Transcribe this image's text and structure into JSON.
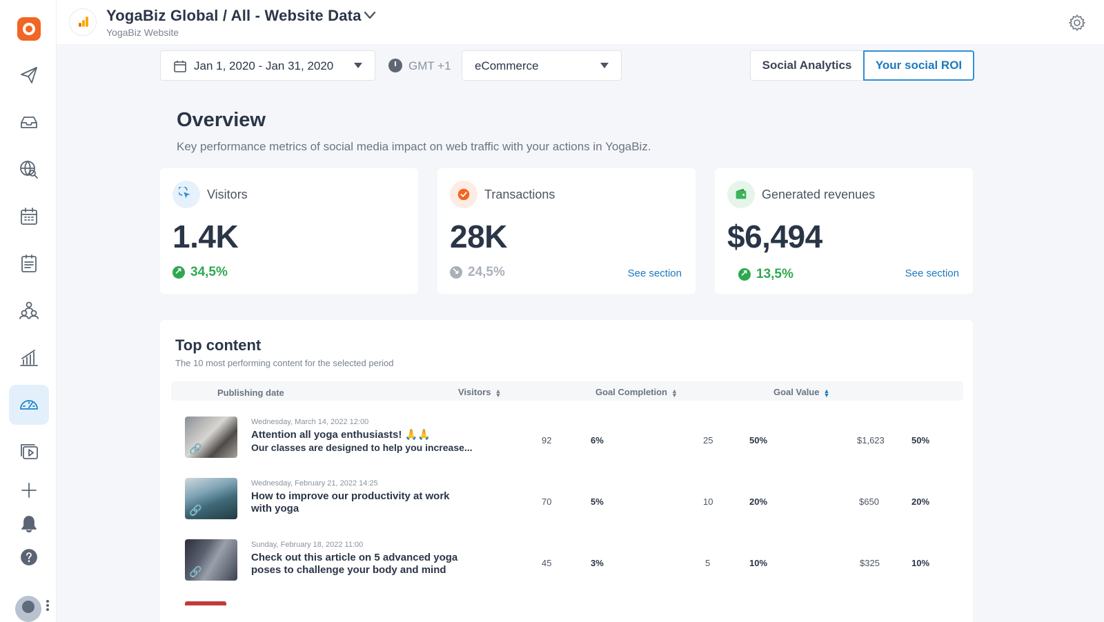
{
  "brand": {
    "logo_letter": "a",
    "accent": "#f26522"
  },
  "sidebar": {
    "items": [
      {
        "name": "publish",
        "icon": "paper-plane-icon"
      },
      {
        "name": "inbox",
        "icon": "inbox-icon"
      },
      {
        "name": "listening",
        "icon": "globe-search-icon"
      },
      {
        "name": "calendar",
        "icon": "calendar-icon"
      },
      {
        "name": "tasks",
        "icon": "clipboard-icon"
      },
      {
        "name": "team",
        "icon": "team-icon"
      },
      {
        "name": "analytics",
        "icon": "bar-chart-icon"
      },
      {
        "name": "dashboard",
        "icon": "speedometer-icon",
        "active": true
      },
      {
        "name": "media",
        "icon": "media-library-icon"
      },
      {
        "name": "add",
        "icon": "plus-icon"
      },
      {
        "name": "notifications",
        "icon": "bell-icon"
      },
      {
        "name": "help",
        "icon": "help-icon"
      }
    ]
  },
  "header": {
    "title": "YogaBiz Global / All - Website Data",
    "subtitle": "YogaBiz Website"
  },
  "filters": {
    "date_range": "Jan 1, 2020 - Jan 31, 2020",
    "timezone": "GMT +1",
    "view_select": "eCommerce"
  },
  "tabs": {
    "social_analytics": "Social Analytics",
    "social_roi": "Your social ROI",
    "active": "social_roi"
  },
  "overview": {
    "title": "Overview",
    "subtitle": "Key performance metrics of social media impact on web traffic with your actions in YogaBiz."
  },
  "metrics": [
    {
      "label": "Visitors",
      "value": "1.4K",
      "delta": "34,5%",
      "trend": "up",
      "link": ""
    },
    {
      "label": "Transactions",
      "value": "28K",
      "delta": "24,5%",
      "trend": "flat",
      "link": "See section"
    },
    {
      "label": "Generated revenues",
      "value": "$6,494",
      "delta": "13,5%",
      "trend": "up",
      "link": "See section"
    }
  ],
  "top_content": {
    "title": "Top content",
    "subtitle": "The 10 most performing content for the selected period",
    "columns": {
      "publishing_date": "Publishing date",
      "visitors": "Visitors",
      "goal_completion": "Goal Completion",
      "goal_value": "Goal Value"
    },
    "rows": [
      {
        "date": "Wednesday, March 14, 2022 12:00",
        "line1": "Attention all yoga enthusiasts! 🙏🙏",
        "line2": "Our classes are designed to help you increase...",
        "visitors": "92",
        "visitors_pct": "6%",
        "goal_completion": "25",
        "goal_completion_pct": "50%",
        "goal_value": "$1,623",
        "goal_value_pct": "50%"
      },
      {
        "date": "Wednesday, February 21, 2022 14:25",
        "line1": "How to improve our productivity at work",
        "line2": "with yoga",
        "visitors": "70",
        "visitors_pct": "5%",
        "goal_completion": "10",
        "goal_completion_pct": "20%",
        "goal_value": "$650",
        "goal_value_pct": "20%"
      },
      {
        "date": "Sunday, February 18, 2022 11:00",
        "line1": "Check out this article on 5 advanced yoga",
        "line2": "poses to challenge your body and mind",
        "visitors": "45",
        "visitors_pct": "3%",
        "goal_completion": "5",
        "goal_completion_pct": "10%",
        "goal_value": "$325",
        "goal_value_pct": "10%"
      }
    ]
  }
}
